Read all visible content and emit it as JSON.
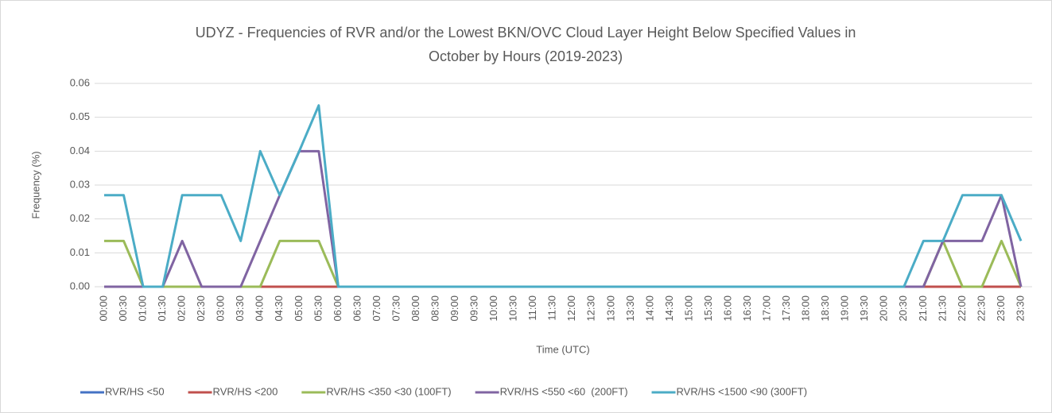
{
  "chart_data": {
    "type": "line",
    "title": [
      "UDYZ - Frequencies of RVR and/or the Lowest BKN/OVC Cloud Layer Height Below Specified Values in",
      "October by Hours (2019-2023)"
    ],
    "x_label": "Time (UTC)",
    "y_label": "Frequency (%)",
    "categories": [
      "00:00",
      "00:30",
      "01:00",
      "01:30",
      "02:00",
      "02:30",
      "03:00",
      "03:30",
      "04:00",
      "04:30",
      "05:00",
      "05:30",
      "06:00",
      "06:30",
      "07:00",
      "07:30",
      "08:00",
      "08:30",
      "09:00",
      "09:30",
      "10:00",
      "10:30",
      "11:00",
      "11:30",
      "12:00",
      "12:30",
      "13:00",
      "13:30",
      "14:00",
      "14:30",
      "15:00",
      "15:30",
      "16:00",
      "16:30",
      "17:00",
      "17:30",
      "18:00",
      "18:30",
      "19:00",
      "19:30",
      "20:00",
      "20:30",
      "21:00",
      "21:30",
      "22:00",
      "22:30",
      "23:00",
      "23:30"
    ],
    "ylim": [
      0,
      0.06
    ],
    "yticks": [
      {
        "value": 0,
        "label": "0.00"
      },
      0.01,
      0.02,
      0.03,
      0.04,
      0.05,
      0.06
    ],
    "grid": true,
    "legend": "bottom",
    "series": [
      {
        "name": "RVR/HS <50",
        "color": "#4472c4",
        "values": [
          0,
          0,
          0,
          0,
          0,
          0,
          0,
          0,
          0,
          0,
          0,
          0,
          0,
          0,
          0,
          0,
          0,
          0,
          0,
          0,
          0,
          0,
          0,
          0,
          0,
          0,
          0,
          0,
          0,
          0,
          0,
          0,
          0,
          0,
          0,
          0,
          0,
          0,
          0,
          0,
          0,
          0,
          0,
          0,
          0,
          0,
          0,
          0
        ]
      },
      {
        "name": "RVR/HS <200",
        "color": "#c0504d",
        "values": [
          0,
          0,
          0,
          0,
          0,
          0,
          0,
          0,
          0,
          0,
          0,
          0,
          0,
          0,
          0,
          0,
          0,
          0,
          0,
          0,
          0,
          0,
          0,
          0,
          0,
          0,
          0,
          0,
          0,
          0,
          0,
          0,
          0,
          0,
          0,
          0,
          0,
          0,
          0,
          0,
          0,
          0,
          0,
          0,
          0,
          0,
          0,
          0
        ]
      },
      {
        "name": "RVR/HS <350 <30 (100FT)",
        "color": "#9bbb59",
        "values": [
          0.0135,
          0.0135,
          0,
          0,
          0,
          0,
          0,
          0,
          0,
          0.0135,
          0.0135,
          0.0135,
          0,
          0,
          0,
          0,
          0,
          0,
          0,
          0,
          0,
          0,
          0,
          0,
          0,
          0,
          0,
          0,
          0,
          0,
          0,
          0,
          0,
          0,
          0,
          0,
          0,
          0,
          0,
          0,
          0,
          0,
          0,
          0.0135,
          0,
          0,
          0.0135,
          0
        ]
      },
      {
        "name": "RVR/HS <550 <60  (200FT)",
        "color": "#8064a2",
        "values": [
          0,
          0,
          0,
          0,
          0.0135,
          0,
          0,
          0,
          0.0135,
          0.027,
          0.04,
          0.04,
          0,
          0,
          0,
          0,
          0,
          0,
          0,
          0,
          0,
          0,
          0,
          0,
          0,
          0,
          0,
          0,
          0,
          0,
          0,
          0,
          0,
          0,
          0,
          0,
          0,
          0,
          0,
          0,
          0,
          0,
          0,
          0.0135,
          0.0135,
          0.0135,
          0.027,
          0
        ]
      },
      {
        "name": "RVR/HS <1500 <90 (300FT)",
        "color": "#4bacc6",
        "values": [
          0.027,
          0.027,
          0,
          0,
          0.027,
          0.027,
          0.027,
          0.0135,
          0.04,
          0.027,
          0.04,
          0.0535,
          0,
          0,
          0,
          0,
          0,
          0,
          0,
          0,
          0,
          0,
          0,
          0,
          0,
          0,
          0,
          0,
          0,
          0,
          0,
          0,
          0,
          0,
          0,
          0,
          0,
          0,
          0,
          0,
          0,
          0,
          0.0135,
          0.0135,
          0.027,
          0.027,
          0.027,
          0.0135
        ]
      }
    ]
  }
}
